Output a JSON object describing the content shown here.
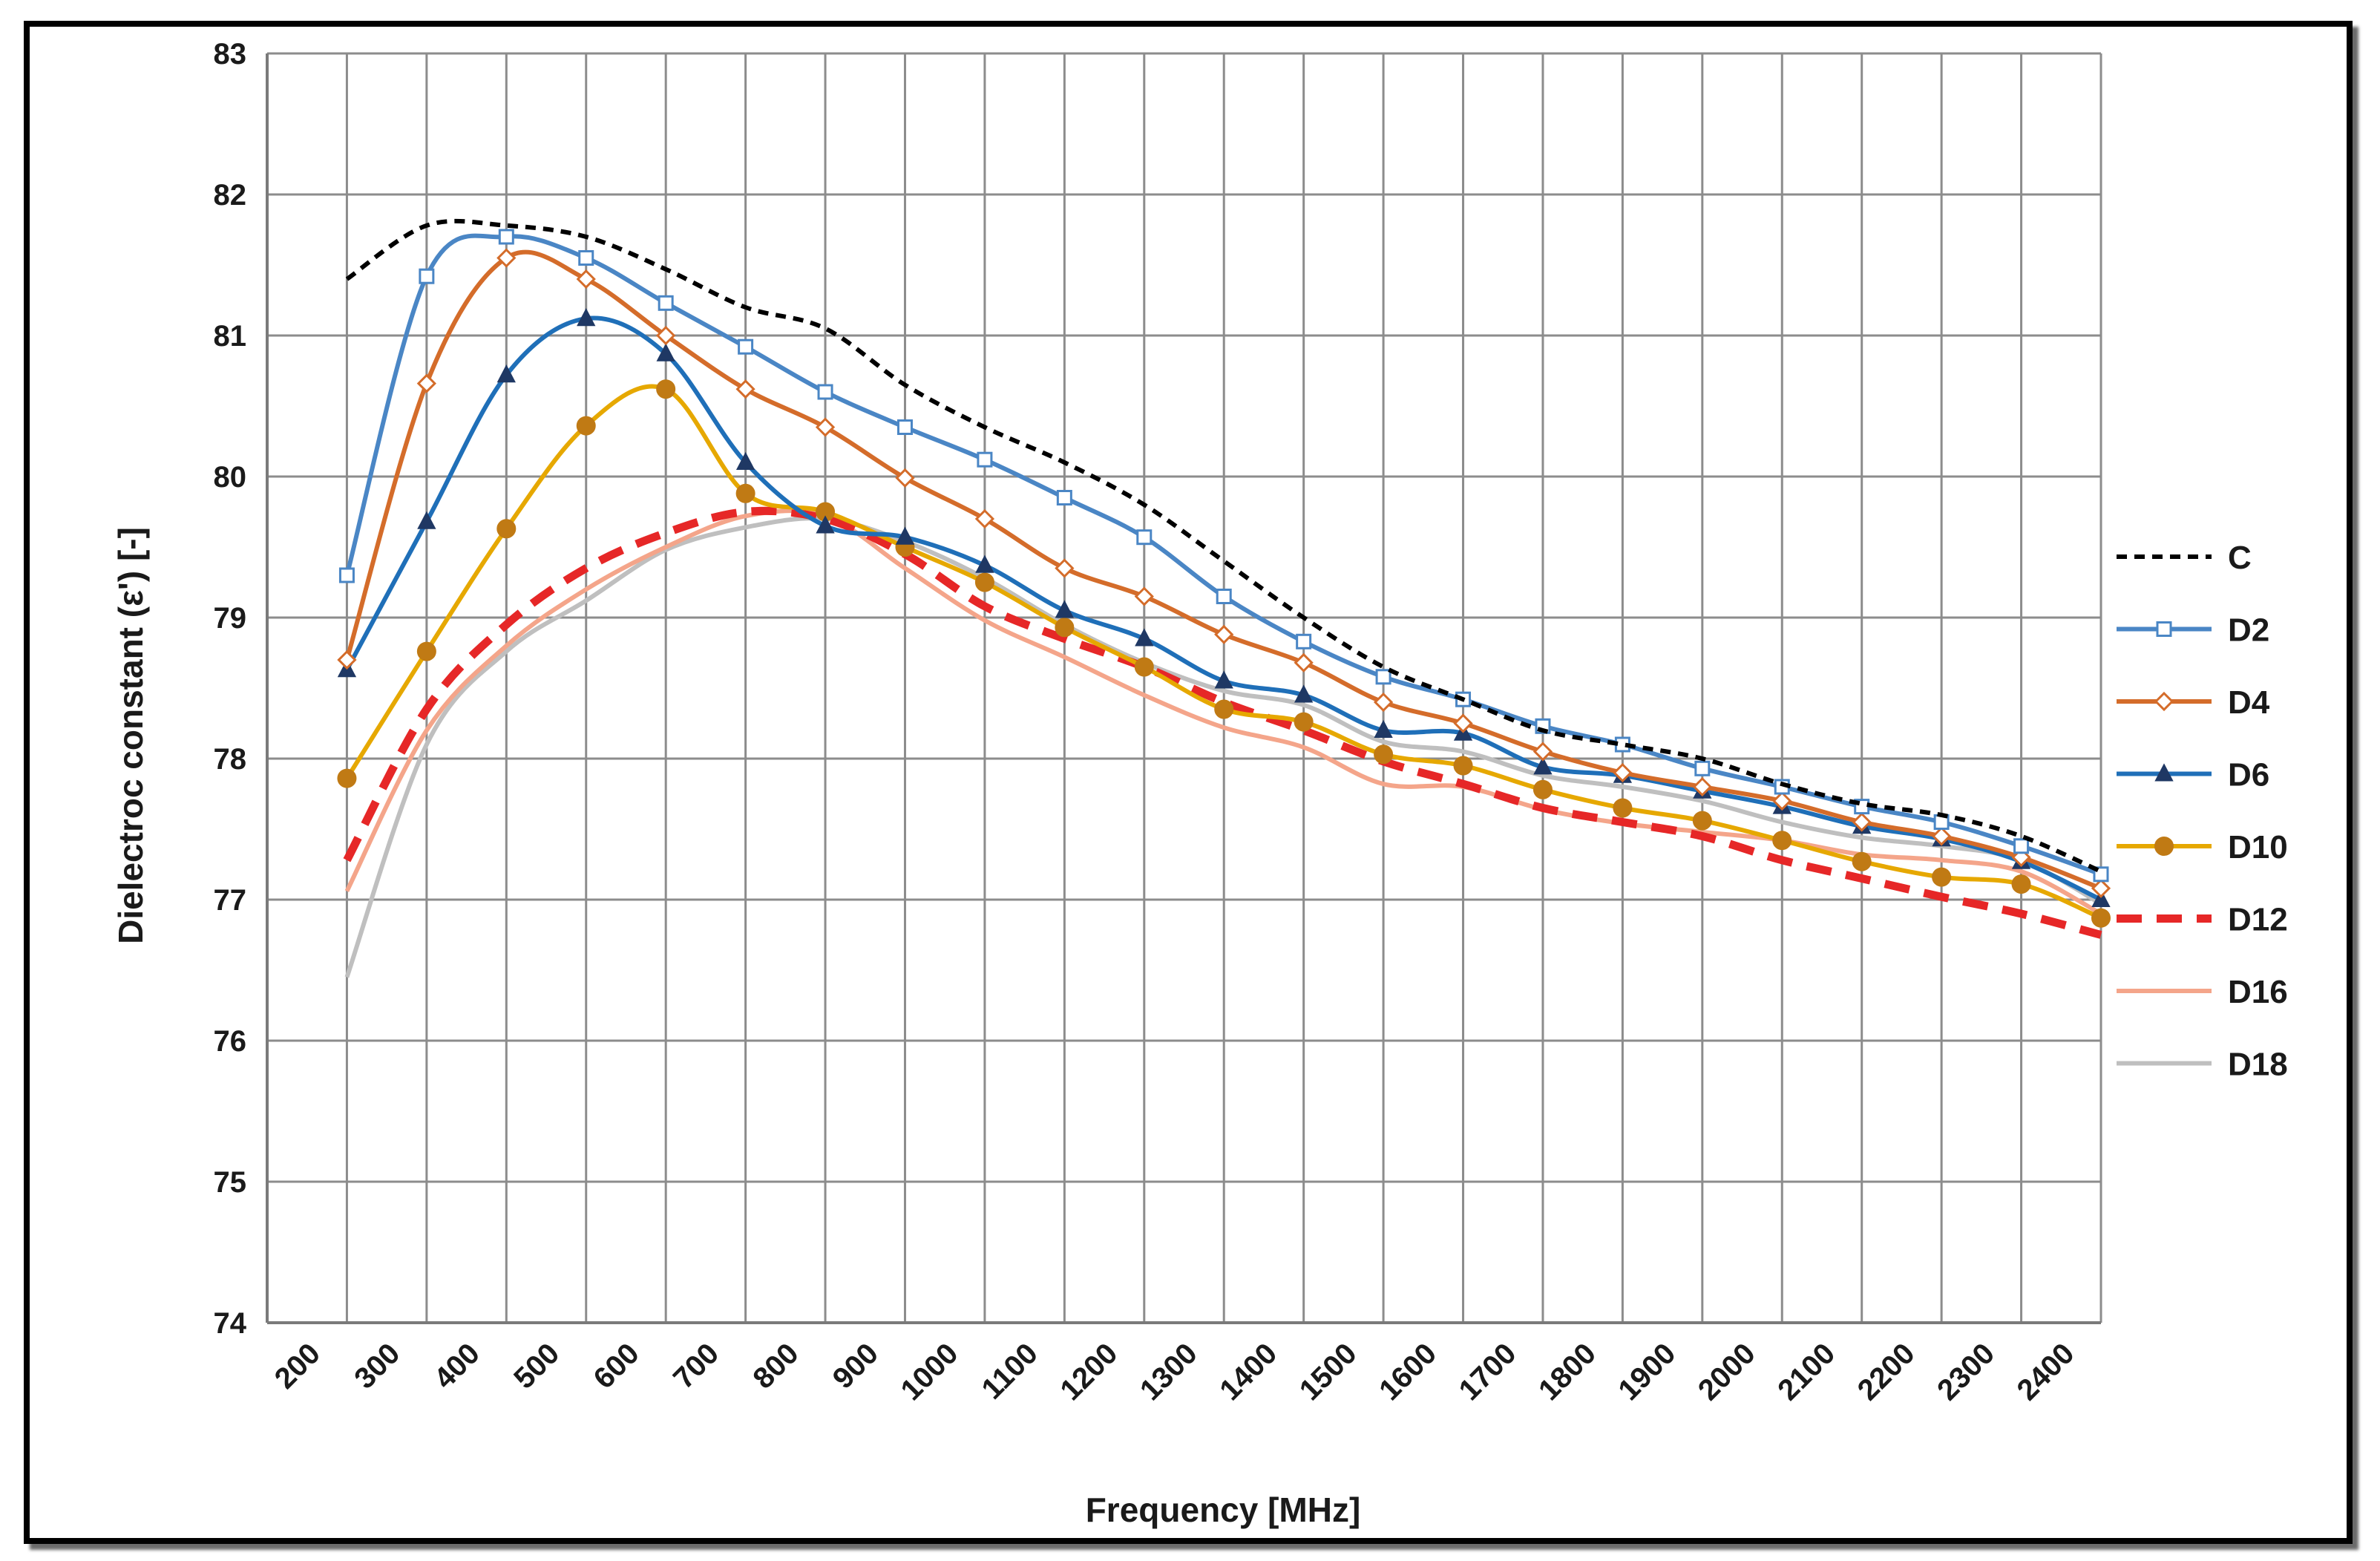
{
  "chart_data": {
    "type": "line",
    "title": "",
    "xlabel": "Frequency [MHz]",
    "ylabel": "Dielectroc constant (ε') [-]",
    "xlim": [
      150,
      2450
    ],
    "ylim": [
      74,
      83
    ],
    "x_ticks": [
      200,
      300,
      400,
      500,
      600,
      700,
      800,
      900,
      1000,
      1100,
      1200,
      1300,
      1400,
      1500,
      1600,
      1700,
      1800,
      1900,
      2000,
      2100,
      2200,
      2300,
      2400
    ],
    "y_ticks": [
      74,
      75,
      76,
      77,
      78,
      79,
      80,
      81,
      82,
      83
    ],
    "grid": true,
    "legend_position": "right",
    "x": [
      250,
      350,
      450,
      550,
      650,
      750,
      850,
      950,
      1050,
      1150,
      1250,
      1350,
      1450,
      1550,
      1650,
      1750,
      1850,
      1950,
      2050,
      2150,
      2250,
      2350,
      2450
    ],
    "series": [
      {
        "name": "C",
        "color": "#000000",
        "style": "dotted",
        "marker": "none",
        "values": [
          81.4,
          81.78,
          81.78,
          81.7,
          81.47,
          81.2,
          81.05,
          80.65,
          80.35,
          80.1,
          79.8,
          79.4,
          79.0,
          78.65,
          78.42,
          78.2,
          78.1,
          78.0,
          77.82,
          77.68,
          77.6,
          77.45,
          77.2
        ]
      },
      {
        "name": "D2",
        "color": "#4a86c5",
        "style": "solid",
        "marker": "square",
        "values": [
          79.3,
          81.42,
          81.7,
          81.55,
          81.23,
          80.92,
          80.6,
          80.35,
          80.12,
          79.85,
          79.57,
          79.15,
          78.83,
          78.58,
          78.42,
          78.23,
          78.1,
          77.93,
          77.8,
          77.66,
          77.55,
          77.38,
          77.18
        ]
      },
      {
        "name": "D4",
        "color": "#d46c2a",
        "style": "solid",
        "marker": "diamond",
        "values": [
          78.7,
          80.66,
          81.55,
          81.4,
          81.0,
          80.62,
          80.35,
          79.99,
          79.7,
          79.35,
          79.15,
          78.88,
          78.68,
          78.4,
          78.25,
          78.05,
          77.9,
          77.8,
          77.7,
          77.55,
          77.45,
          77.3,
          77.08
        ]
      },
      {
        "name": "D6",
        "color": "#1f6fb8",
        "style": "solid",
        "marker": "triangle",
        "values": [
          78.63,
          79.68,
          80.72,
          81.12,
          80.87,
          80.1,
          79.65,
          79.57,
          79.37,
          79.05,
          78.85,
          78.55,
          78.45,
          78.2,
          78.18,
          77.94,
          77.88,
          77.77,
          77.66,
          77.52,
          77.43,
          77.27,
          77.0
        ]
      },
      {
        "name": "D10",
        "color": "#e6a800",
        "style": "solid",
        "marker": "circle",
        "values": [
          77.86,
          78.76,
          79.63,
          80.36,
          80.62,
          79.88,
          79.75,
          79.5,
          79.25,
          78.93,
          78.65,
          78.35,
          78.26,
          78.03,
          77.95,
          77.78,
          77.65,
          77.56,
          77.42,
          77.27,
          77.16,
          77.11,
          76.87
        ]
      },
      {
        "name": "D12",
        "color": "#e62727",
        "style": "dashed",
        "marker": "none",
        "values": [
          77.28,
          78.35,
          78.95,
          79.35,
          79.6,
          79.75,
          79.7,
          79.45,
          79.08,
          78.85,
          78.65,
          78.4,
          78.2,
          77.98,
          77.82,
          77.65,
          77.55,
          77.45,
          77.28,
          77.15,
          77.02,
          76.9,
          76.75
        ]
      },
      {
        "name": "D16",
        "color": "#f4a58a",
        "style": "solid",
        "marker": "none",
        "values": [
          77.06,
          78.2,
          78.8,
          79.2,
          79.5,
          79.72,
          79.72,
          79.35,
          78.98,
          78.72,
          78.45,
          78.22,
          78.08,
          77.82,
          77.8,
          77.64,
          77.54,
          77.48,
          77.42,
          77.32,
          77.28,
          77.2,
          76.9
        ]
      },
      {
        "name": "D18",
        "color": "#bfbfbf",
        "style": "solid",
        "marker": "none",
        "values": [
          76.45,
          78.1,
          78.76,
          79.12,
          79.48,
          79.64,
          79.7,
          79.54,
          79.28,
          78.95,
          78.68,
          78.48,
          78.38,
          78.12,
          78.05,
          77.88,
          77.8,
          77.7,
          77.55,
          77.44,
          77.38,
          77.28,
          76.97
        ]
      }
    ]
  }
}
